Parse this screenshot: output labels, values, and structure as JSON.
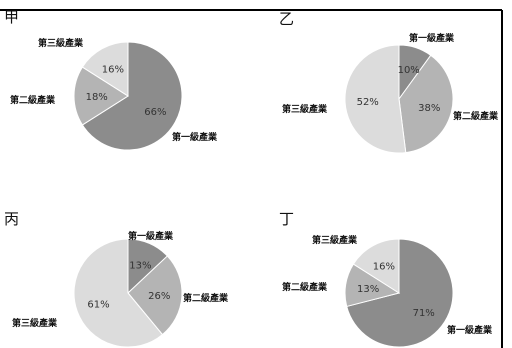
{
  "chart_data": [
    {
      "type": "pie",
      "panel_label": "甲",
      "slices": [
        {
          "label": "第一級產業",
          "value": 66,
          "display": "66%",
          "color": "#8c8c8c"
        },
        {
          "label": "第二級產業",
          "value": 18,
          "display": "18%",
          "color": "#b4b4b4"
        },
        {
          "label": "第三級產業",
          "value": 16,
          "display": "16%",
          "color": "#dcdcdc"
        }
      ]
    },
    {
      "type": "pie",
      "panel_label": "乙",
      "slices": [
        {
          "label": "第一級產業",
          "value": 10,
          "display": "10%",
          "color": "#8c8c8c"
        },
        {
          "label": "第二級產業",
          "value": 38,
          "display": "38%",
          "color": "#b4b4b4"
        },
        {
          "label": "第三級產業",
          "value": 52,
          "display": "52%",
          "color": "#dcdcdc"
        }
      ]
    },
    {
      "type": "pie",
      "panel_label": "丙",
      "slices": [
        {
          "label": "第一級產業",
          "value": 13,
          "display": "13%",
          "color": "#8c8c8c"
        },
        {
          "label": "第二級產業",
          "value": 26,
          "display": "26%",
          "color": "#b4b4b4"
        },
        {
          "label": "第三級產業",
          "value": 61,
          "display": "61%",
          "color": "#dcdcdc"
        }
      ]
    },
    {
      "type": "pie",
      "panel_label": "丁",
      "slices": [
        {
          "label": "第一級產業",
          "value": 71,
          "display": "71%",
          "color": "#8c8c8c"
        },
        {
          "label": "第二級產業",
          "value": 13,
          "display": "13%",
          "color": "#b4b4b4"
        },
        {
          "label": "第三級產業",
          "value": 16,
          "display": "16%",
          "color": "#dcdcdc"
        }
      ]
    }
  ]
}
